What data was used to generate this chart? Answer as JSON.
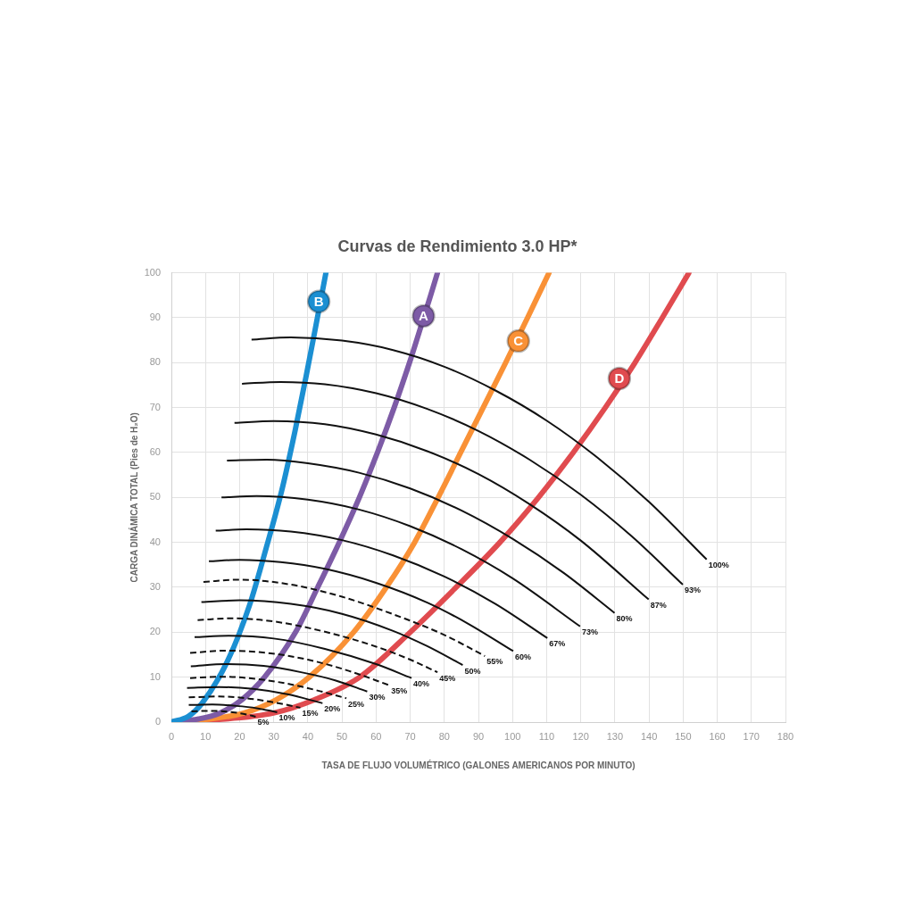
{
  "chart_data": {
    "type": "line",
    "title": "Curvas de Rendimiento 3.0 HP*",
    "xlabel": "TASA DE FLUJO VOLUMÉTRICO (GALONES AMERICANOS POR MINUTO)",
    "ylabel": "CARGA DINÁMICA TOTAL (Pies de H₂O)",
    "xlim": [
      0,
      180
    ],
    "xticks": [
      0,
      10,
      20,
      30,
      40,
      50,
      60,
      70,
      80,
      90,
      100,
      110,
      120,
      130,
      140,
      150,
      160,
      170,
      180
    ],
    "ylim": [
      0,
      100
    ],
    "yticks": [
      0,
      10,
      20,
      30,
      40,
      50,
      60,
      70,
      80,
      90,
      100
    ],
    "grid": true,
    "series": [
      {
        "color": "#1b8fd2",
        "x": [
          0,
          5,
          9,
          16.4,
          22.9,
          27.7,
          32.5,
          36.3,
          39.5,
          42.3,
          45.3
        ],
        "values": [
          0,
          1.3,
          4.2,
          13.5,
          26,
          38.5,
          52,
          65,
          77,
          88,
          100
        ]
      },
      {
        "color": "#7d5ba6",
        "x": [
          0,
          8,
          14.2,
          20.7,
          27.3,
          36.4,
          42.9,
          49.2,
          55.1,
          60.4,
          65.3,
          69.8,
          71.9,
          76,
          78
        ],
        "values": [
          0,
          0.7,
          2,
          5,
          10,
          20,
          30,
          40,
          50,
          60,
          70,
          80,
          85,
          95,
          100
        ]
      },
      {
        "color": "#f99136",
        "x": [
          0,
          10,
          21.2,
          30.8,
          40.4,
          53.4,
          63,
          71.3,
          78.2,
          84.8,
          91.4,
          98,
          104.4,
          110.7
        ],
        "values": [
          0,
          0.6,
          2,
          5,
          10,
          20,
          30,
          40,
          50,
          60,
          70,
          80,
          90,
          100
        ]
      },
      {
        "color": "#e04b4f",
        "x": [
          0,
          12.5,
          29.9,
          42.1,
          55.2,
          70,
          82.8,
          96.3,
          107.6,
          117.8,
          127.2,
          135.9,
          143.9,
          151.7
        ],
        "values": [
          0,
          0.5,
          2,
          5,
          10,
          20,
          29.5,
          40,
          50,
          60,
          70,
          80,
          90,
          100
        ]
      },
      {
        "name": "100%",
        "color": "#111111",
        "x": [
          23.5,
          35,
          50,
          65,
          80,
          95,
          110,
          125,
          140,
          156.9
        ],
        "values": [
          85.1,
          85.6,
          84.9,
          82.8,
          79.1,
          73.8,
          67.1,
          58.8,
          49,
          36.2
        ]
      },
      {
        "name": "93%",
        "color": "#111111",
        "x": [
          20.7,
          32,
          45,
          60,
          75,
          90,
          105,
          120,
          135,
          149.9
        ],
        "values": [
          75.3,
          75.7,
          75.2,
          73.2,
          69.7,
          64.8,
          58.4,
          50.6,
          41.3,
          30.6
        ]
      },
      {
        "name": "87%",
        "color": "#111111",
        "x": [
          18.5,
          30,
          45,
          60,
          75,
          90,
          105,
          120,
          139.9
        ],
        "values": [
          66.6,
          67,
          66.3,
          64,
          60.3,
          55.2,
          48.5,
          40.4,
          27.3
        ]
      },
      {
        "name": "80%",
        "color": "#111111",
        "x": [
          16.3,
          28,
          40,
          55,
          70,
          85,
          100,
          115,
          129.9
        ],
        "values": [
          58.2,
          58.4,
          57.6,
          55.5,
          52,
          47.1,
          40.8,
          33.2,
          24.3
        ]
      },
      {
        "name": "73%",
        "color": "#111111",
        "x": [
          14.7,
          25,
          40,
          55,
          70,
          85,
          100,
          119.8
        ],
        "values": [
          50,
          50.3,
          49.5,
          47.3,
          43.6,
          38.5,
          32,
          21.3
        ]
      },
      {
        "name": "67%",
        "color": "#111111",
        "x": [
          13,
          22,
          35,
          50,
          65,
          80,
          95,
          110.2
        ],
        "values": [
          42.6,
          42.9,
          42.4,
          40.5,
          37.1,
          32.4,
          26.3,
          18.7
        ]
      },
      {
        "name": "60%",
        "color": "#111111",
        "x": [
          11,
          20,
          32,
          45,
          60,
          75,
          87,
          100.2
        ],
        "values": [
          35.8,
          36.1,
          35.6,
          34.1,
          31,
          26.6,
          21.9,
          15.8
        ]
      },
      {
        "name": "55%",
        "color": "#111111",
        "line_style": "dashed",
        "x": [
          9.4,
          20,
          35,
          50,
          65,
          80,
          91.9
        ],
        "values": [
          31.2,
          31.7,
          30.6,
          27.9,
          24,
          19.4,
          14.7
        ]
      },
      {
        "name": "50%",
        "color": "#111111",
        "x": [
          8.8,
          20,
          35,
          50,
          65,
          75,
          85.4
        ],
        "values": [
          26.7,
          27.1,
          26.3,
          24.1,
          20.3,
          16.9,
          12.7
        ]
      },
      {
        "name": "45%",
        "color": "#111111",
        "line_style": "dashed",
        "x": [
          7.7,
          18,
          30,
          45,
          60,
          70,
          78
        ],
        "values": [
          22.7,
          23.1,
          22.4,
          20.1,
          16.8,
          13.9,
          11.1
        ]
      },
      {
        "name": "40%",
        "color": "#111111",
        "x": [
          6.8,
          17,
          30,
          45,
          60,
          70.4
        ],
        "values": [
          18.9,
          19.2,
          18.6,
          16.3,
          12.9,
          9.8
        ]
      },
      {
        "name": "35%",
        "color": "#111111",
        "line_style": "dashed",
        "x": [
          5.5,
          16,
          28,
          40,
          52,
          63.9
        ],
        "values": [
          15.4,
          15.9,
          15.4,
          13.9,
          11.4,
          8.2
        ]
      },
      {
        "name": "30%",
        "color": "#111111",
        "x": [
          5.7,
          16,
          27,
          38,
          48,
          57.4
        ],
        "values": [
          12.4,
          12.9,
          12.5,
          11.1,
          9.3,
          6.8
        ]
      },
      {
        "name": "25%",
        "color": "#111111",
        "line_style": "dashed",
        "x": [
          5.5,
          15,
          25,
          35,
          44,
          51.3
        ],
        "values": [
          9.8,
          10.1,
          9.6,
          8.4,
          6.8,
          5.3
        ]
      },
      {
        "name": "20%",
        "color": "#111111",
        "x": [
          4.6,
          14,
          24,
          34,
          44.3
        ],
        "values": [
          7.6,
          7.8,
          7.4,
          6.2,
          4.2
        ]
      },
      {
        "name": "15%",
        "color": "#111111",
        "line_style": "dashed",
        "x": [
          5.1,
          14,
          22,
          30,
          37.8
        ],
        "values": [
          5.5,
          5.7,
          5.3,
          4.4,
          3.2
        ]
      },
      {
        "name": "10%",
        "color": "#111111",
        "x": [
          5.1,
          12,
          19,
          25,
          31
        ],
        "values": [
          3.8,
          3.9,
          3.6,
          3.1,
          2.2
        ]
      },
      {
        "name": "5%",
        "color": "#111111",
        "line_style": "dashed",
        "x": [
          5.9,
          12,
          18,
          22,
          24.7
        ],
        "values": [
          2.4,
          2.5,
          2.2,
          1.7,
          1.2
        ]
      }
    ],
    "annotations": [
      {
        "text": "B",
        "x": 43.2,
        "y": 93.6
      },
      {
        "text": "A",
        "x": 73.9,
        "y": 90.4
      },
      {
        "text": "C",
        "x": 101.7,
        "y": 84.8
      },
      {
        "text": "D",
        "x": 131.3,
        "y": 76.5
      }
    ]
  }
}
